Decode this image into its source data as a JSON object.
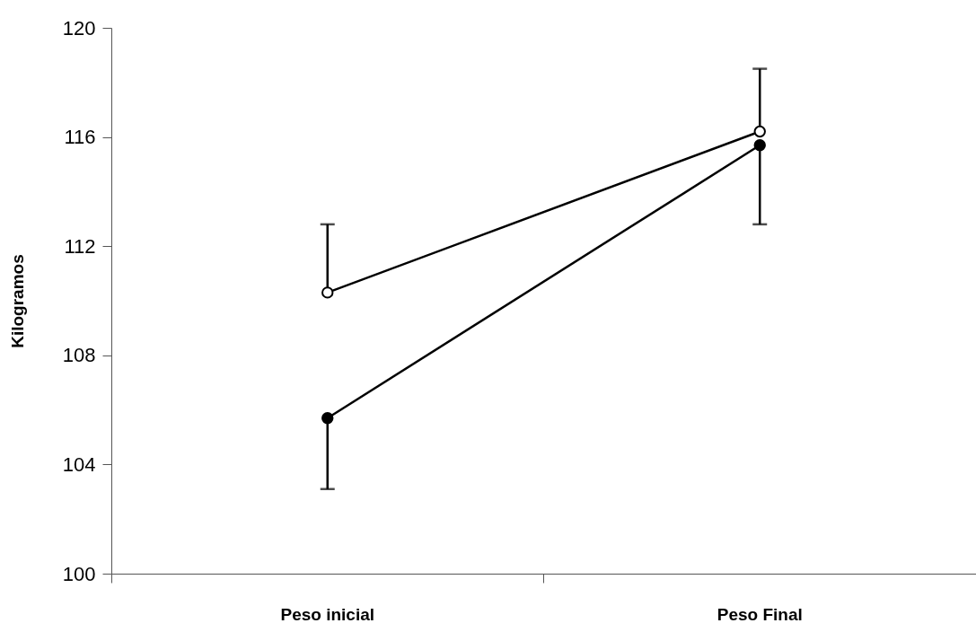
{
  "chart_data": {
    "type": "line",
    "ylabel": "Kilogramos",
    "categories": [
      "Peso inicial",
      "Peso Final"
    ],
    "series": [
      {
        "color": "#000000",
        "values": [
          110.3,
          116.2
        ],
        "errors": [
          [
            110.3,
            112.8
          ],
          [
            116.2,
            118.5
          ]
        ]
      },
      {
        "color": "#000000",
        "values": [
          105.7,
          115.7
        ],
        "errors": [
          [
            103.1,
            105.7
          ],
          [
            112.8,
            115.7
          ]
        ]
      }
    ],
    "ylim": [
      100,
      120
    ],
    "yticks": [
      100,
      104,
      108,
      112,
      116,
      120
    ],
    "marker": "circle",
    "grid": false,
    "legend": false
  }
}
